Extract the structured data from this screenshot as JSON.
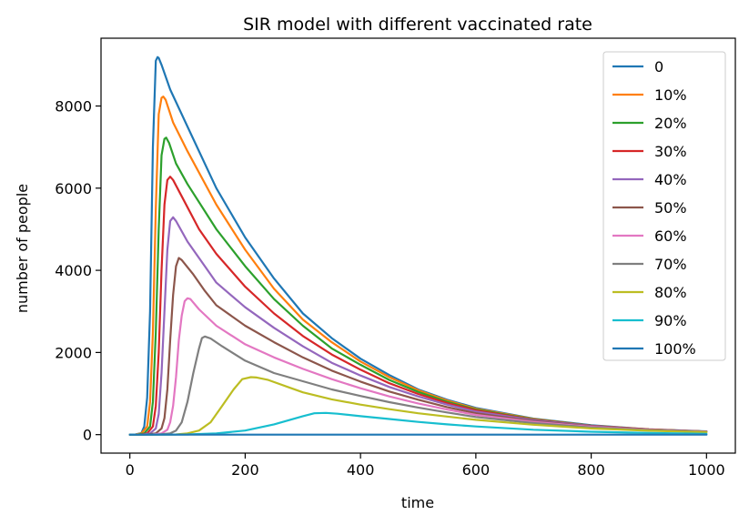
{
  "chart_data": {
    "type": "line",
    "title": "SIR model with different vaccinated rate",
    "xlabel": "time",
    "ylabel": "number of people",
    "xlim": [
      -50,
      1050
    ],
    "ylim": [
      -450,
      9650
    ],
    "xticks": [
      0,
      200,
      400,
      600,
      800,
      1000
    ],
    "yticks": [
      0,
      2000,
      4000,
      6000,
      8000
    ],
    "grid": false,
    "legend_position": "top-right",
    "series": [
      {
        "name": "0",
        "color": "#1f77b4",
        "points": [
          [
            0,
            0
          ],
          [
            10,
            5
          ],
          [
            20,
            40
          ],
          [
            25,
            200
          ],
          [
            30,
            900
          ],
          [
            35,
            3000
          ],
          [
            40,
            7000
          ],
          [
            45,
            9100
          ],
          [
            48,
            9190
          ],
          [
            50,
            9170
          ],
          [
            55,
            9000
          ],
          [
            70,
            8400
          ],
          [
            100,
            7500
          ],
          [
            150,
            6000
          ],
          [
            200,
            4800
          ],
          [
            250,
            3800
          ],
          [
            300,
            2950
          ],
          [
            350,
            2350
          ],
          [
            400,
            1850
          ],
          [
            450,
            1450
          ],
          [
            500,
            1100
          ],
          [
            550,
            850
          ],
          [
            600,
            650
          ],
          [
            700,
            390
          ],
          [
            800,
            230
          ],
          [
            900,
            130
          ],
          [
            1000,
            80
          ]
        ]
      },
      {
        "name": "10%",
        "color": "#ff7f0e",
        "points": [
          [
            0,
            0
          ],
          [
            10,
            5
          ],
          [
            20,
            30
          ],
          [
            30,
            200
          ],
          [
            35,
            800
          ],
          [
            40,
            2500
          ],
          [
            45,
            5500
          ],
          [
            50,
            7800
          ],
          [
            55,
            8200
          ],
          [
            58,
            8230
          ],
          [
            62,
            8150
          ],
          [
            75,
            7600
          ],
          [
            100,
            6900
          ],
          [
            150,
            5600
          ],
          [
            200,
            4500
          ],
          [
            250,
            3550
          ],
          [
            300,
            2800
          ],
          [
            350,
            2250
          ],
          [
            400,
            1780
          ],
          [
            450,
            1400
          ],
          [
            500,
            1080
          ],
          [
            550,
            830
          ],
          [
            600,
            630
          ],
          [
            700,
            380
          ],
          [
            800,
            220
          ],
          [
            900,
            130
          ],
          [
            1000,
            75
          ]
        ]
      },
      {
        "name": "20%",
        "color": "#2ca02c",
        "points": [
          [
            0,
            0
          ],
          [
            15,
            5
          ],
          [
            25,
            30
          ],
          [
            35,
            200
          ],
          [
            40,
            800
          ],
          [
            45,
            2500
          ],
          [
            50,
            5000
          ],
          [
            55,
            6800
          ],
          [
            60,
            7200
          ],
          [
            63,
            7230
          ],
          [
            68,
            7100
          ],
          [
            80,
            6600
          ],
          [
            100,
            6100
          ],
          [
            150,
            5000
          ],
          [
            200,
            4100
          ],
          [
            250,
            3300
          ],
          [
            300,
            2650
          ],
          [
            350,
            2100
          ],
          [
            400,
            1700
          ],
          [
            450,
            1330
          ],
          [
            500,
            1040
          ],
          [
            550,
            800
          ],
          [
            600,
            610
          ],
          [
            700,
            370
          ],
          [
            800,
            220
          ],
          [
            900,
            125
          ],
          [
            1000,
            75
          ]
        ]
      },
      {
        "name": "30%",
        "color": "#d62728",
        "points": [
          [
            0,
            0
          ],
          [
            20,
            5
          ],
          [
            30,
            30
          ],
          [
            40,
            200
          ],
          [
            45,
            700
          ],
          [
            50,
            2000
          ],
          [
            55,
            4000
          ],
          [
            60,
            5600
          ],
          [
            65,
            6200
          ],
          [
            70,
            6280
          ],
          [
            75,
            6200
          ],
          [
            90,
            5800
          ],
          [
            120,
            5000
          ],
          [
            150,
            4400
          ],
          [
            200,
            3600
          ],
          [
            250,
            2950
          ],
          [
            300,
            2400
          ],
          [
            350,
            1950
          ],
          [
            400,
            1580
          ],
          [
            450,
            1250
          ],
          [
            500,
            990
          ],
          [
            550,
            770
          ],
          [
            600,
            590
          ],
          [
            700,
            360
          ],
          [
            800,
            215
          ],
          [
            900,
            125
          ],
          [
            1000,
            75
          ]
        ]
      },
      {
        "name": "40%",
        "color": "#9467bd",
        "points": [
          [
            0,
            0
          ],
          [
            25,
            5
          ],
          [
            35,
            30
          ],
          [
            45,
            150
          ],
          [
            50,
            500
          ],
          [
            55,
            1500
          ],
          [
            60,
            3000
          ],
          [
            65,
            4500
          ],
          [
            70,
            5200
          ],
          [
            75,
            5290
          ],
          [
            80,
            5200
          ],
          [
            100,
            4700
          ],
          [
            130,
            4100
          ],
          [
            150,
            3700
          ],
          [
            200,
            3100
          ],
          [
            250,
            2600
          ],
          [
            300,
            2150
          ],
          [
            350,
            1750
          ],
          [
            400,
            1440
          ],
          [
            450,
            1160
          ],
          [
            500,
            930
          ],
          [
            550,
            730
          ],
          [
            600,
            560
          ],
          [
            700,
            350
          ],
          [
            800,
            210
          ],
          [
            900,
            120
          ],
          [
            1000,
            75
          ]
        ]
      },
      {
        "name": "50%",
        "color": "#8c564b",
        "points": [
          [
            0,
            0
          ],
          [
            30,
            5
          ],
          [
            45,
            30
          ],
          [
            55,
            150
          ],
          [
            60,
            400
          ],
          [
            65,
            1100
          ],
          [
            70,
            2300
          ],
          [
            75,
            3400
          ],
          [
            80,
            4100
          ],
          [
            85,
            4300
          ],
          [
            90,
            4250
          ],
          [
            110,
            3900
          ],
          [
            130,
            3500
          ],
          [
            150,
            3150
          ],
          [
            200,
            2650
          ],
          [
            250,
            2250
          ],
          [
            300,
            1880
          ],
          [
            350,
            1560
          ],
          [
            400,
            1290
          ],
          [
            450,
            1050
          ],
          [
            500,
            850
          ],
          [
            550,
            670
          ],
          [
            600,
            520
          ],
          [
            700,
            330
          ],
          [
            800,
            200
          ],
          [
            900,
            120
          ],
          [
            1000,
            75
          ]
        ]
      },
      {
        "name": "60%",
        "color": "#e377c2",
        "points": [
          [
            0,
            0
          ],
          [
            40,
            5
          ],
          [
            55,
            30
          ],
          [
            65,
            120
          ],
          [
            70,
            300
          ],
          [
            75,
            700
          ],
          [
            80,
            1400
          ],
          [
            85,
            2300
          ],
          [
            90,
            2900
          ],
          [
            95,
            3250
          ],
          [
            100,
            3320
          ],
          [
            105,
            3300
          ],
          [
            120,
            3050
          ],
          [
            150,
            2650
          ],
          [
            200,
            2200
          ],
          [
            250,
            1880
          ],
          [
            300,
            1600
          ],
          [
            350,
            1350
          ],
          [
            400,
            1130
          ],
          [
            450,
            930
          ],
          [
            500,
            760
          ],
          [
            550,
            610
          ],
          [
            600,
            480
          ],
          [
            700,
            310
          ],
          [
            800,
            190
          ],
          [
            900,
            115
          ],
          [
            1000,
            70
          ]
        ]
      },
      {
        "name": "70%",
        "color": "#7f7f7f",
        "points": [
          [
            0,
            0
          ],
          [
            50,
            5
          ],
          [
            70,
            30
          ],
          [
            80,
            100
          ],
          [
            90,
            300
          ],
          [
            100,
            800
          ],
          [
            110,
            1500
          ],
          [
            120,
            2100
          ],
          [
            125,
            2350
          ],
          [
            130,
            2390
          ],
          [
            140,
            2340
          ],
          [
            160,
            2150
          ],
          [
            200,
            1800
          ],
          [
            250,
            1500
          ],
          [
            300,
            1300
          ],
          [
            350,
            1100
          ],
          [
            400,
            940
          ],
          [
            450,
            790
          ],
          [
            500,
            660
          ],
          [
            550,
            540
          ],
          [
            600,
            430
          ],
          [
            700,
            280
          ],
          [
            800,
            175
          ],
          [
            900,
            110
          ],
          [
            1000,
            65
          ]
        ]
      },
      {
        "name": "80%",
        "color": "#bcbd22",
        "points": [
          [
            0,
            0
          ],
          [
            80,
            5
          ],
          [
            100,
            30
          ],
          [
            120,
            100
          ],
          [
            140,
            300
          ],
          [
            160,
            700
          ],
          [
            180,
            1100
          ],
          [
            195,
            1350
          ],
          [
            210,
            1400
          ],
          [
            220,
            1390
          ],
          [
            240,
            1330
          ],
          [
            280,
            1130
          ],
          [
            300,
            1030
          ],
          [
            350,
            860
          ],
          [
            400,
            730
          ],
          [
            450,
            620
          ],
          [
            500,
            520
          ],
          [
            550,
            440
          ],
          [
            600,
            360
          ],
          [
            700,
            240
          ],
          [
            800,
            150
          ],
          [
            900,
            95
          ],
          [
            1000,
            60
          ]
        ]
      },
      {
        "name": "90%",
        "color": "#17becf",
        "points": [
          [
            0,
            0
          ],
          [
            100,
            5
          ],
          [
            150,
            30
          ],
          [
            200,
            100
          ],
          [
            250,
            250
          ],
          [
            300,
            450
          ],
          [
            320,
            520
          ],
          [
            340,
            530
          ],
          [
            360,
            510
          ],
          [
            400,
            450
          ],
          [
            450,
            380
          ],
          [
            500,
            310
          ],
          [
            550,
            250
          ],
          [
            600,
            200
          ],
          [
            700,
            120
          ],
          [
            800,
            70
          ],
          [
            900,
            40
          ],
          [
            1000,
            20
          ]
        ]
      },
      {
        "name": "100%",
        "color": "#1f77b4",
        "points": [
          [
            0,
            0
          ],
          [
            1000,
            0
          ]
        ]
      }
    ]
  }
}
